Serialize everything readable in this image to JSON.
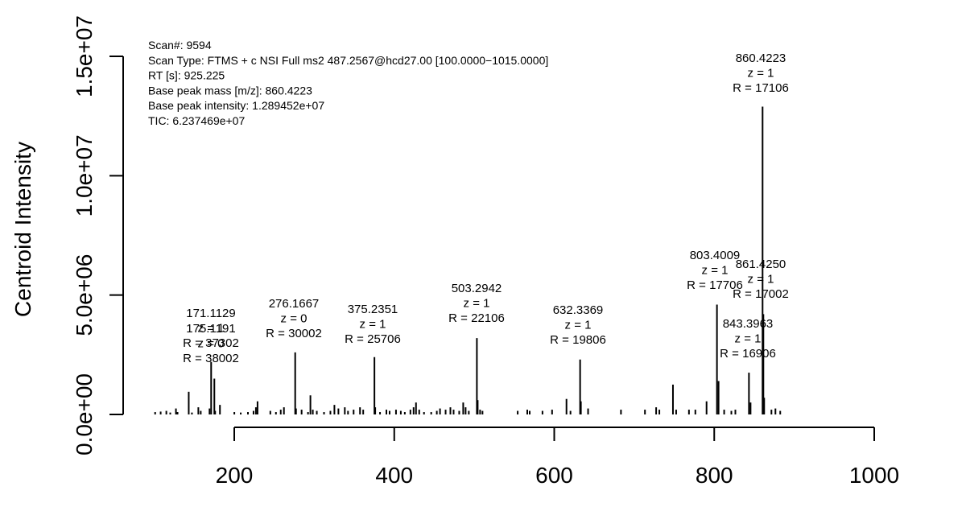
{
  "chart_data": {
    "type": "bar",
    "ylabel": "Centroid Intensity",
    "xlabel": "",
    "xlim": [
      100,
      1000
    ],
    "ylim": [
      0,
      15000000
    ],
    "x_ticks": [
      "200",
      "400",
      "600",
      "800",
      "1000"
    ],
    "y_ticks": [
      "0.0e+00",
      "5.0e+06",
      "1.0e+07",
      "1.5e+07"
    ],
    "info": [
      "Scan#:  9594",
      "Scan Type:  FTMS + c NSI Full ms2 487.2567@hcd27.00 [100.0000−1015.0000]",
      "RT [s]:  925.225",
      "Base peak mass [m/z]:  860.4223",
      "Base peak intensity:  1.289452e+07",
      "TIC:  6.237469e+07"
    ],
    "annotations": [
      {
        "mz": "171.1129",
        "z": "z =  1",
        "r": "R =  37302"
      },
      {
        "mz": "175.1191",
        "z": "z =  0",
        "r": "R =  38002"
      },
      {
        "mz": "276.1667",
        "z": "z =  0",
        "r": "R =  30002"
      },
      {
        "mz": "375.2351",
        "z": "z =  1",
        "r": "R =  25706"
      },
      {
        "mz": "503.2942",
        "z": "z =  1",
        "r": "R =  22106"
      },
      {
        "mz": "632.3369",
        "z": "z =  1",
        "r": "R =  19806"
      },
      {
        "mz": "803.4009",
        "z": "z =  1",
        "r": "R =  17706"
      },
      {
        "mz": "843.3963",
        "z": "z =  1",
        "r": "R =  16906"
      },
      {
        "mz": "860.4223",
        "z": "z =  1",
        "r": "R =  17106"
      },
      {
        "mz": "861.4250",
        "z": "z =  1",
        "r": "R =  17002"
      }
    ],
    "peaks": [
      [
        101.1,
        100000
      ],
      [
        108.0,
        120000
      ],
      [
        115.1,
        150000
      ],
      [
        120.0,
        80000
      ],
      [
        127.1,
        250000
      ],
      [
        129.1,
        100000
      ],
      [
        143.1,
        950000
      ],
      [
        147.1,
        80000
      ],
      [
        155.1,
        300000
      ],
      [
        158.1,
        150000
      ],
      [
        169.1,
        250000
      ],
      [
        171.1129,
        2200000
      ],
      [
        175.1191,
        1500000
      ],
      [
        176.1,
        150000
      ],
      [
        182.1,
        400000
      ],
      [
        200.1,
        100000
      ],
      [
        208.1,
        80000
      ],
      [
        217.1,
        100000
      ],
      [
        224.1,
        150000
      ],
      [
        227.1,
        300000
      ],
      [
        229.1,
        550000
      ],
      [
        245.1,
        150000
      ],
      [
        252.1,
        100000
      ],
      [
        258.1,
        200000
      ],
      [
        262.1,
        300000
      ],
      [
        276.1667,
        2600000
      ],
      [
        277.2,
        250000
      ],
      [
        284.2,
        200000
      ],
      [
        292.2,
        100000
      ],
      [
        295.2,
        800000
      ],
      [
        298.2,
        200000
      ],
      [
        303.2,
        150000
      ],
      [
        312.2,
        100000
      ],
      [
        320.2,
        150000
      ],
      [
        325.2,
        400000
      ],
      [
        330.2,
        250000
      ],
      [
        338.2,
        300000
      ],
      [
        342.2,
        150000
      ],
      [
        349.2,
        200000
      ],
      [
        357.2,
        300000
      ],
      [
        361.2,
        200000
      ],
      [
        375.2351,
        2400000
      ],
      [
        376.2,
        300000
      ],
      [
        382.2,
        100000
      ],
      [
        390.2,
        200000
      ],
      [
        394.2,
        150000
      ],
      [
        402.2,
        200000
      ],
      [
        408.2,
        150000
      ],
      [
        413.2,
        100000
      ],
      [
        420.2,
        200000
      ],
      [
        424.2,
        300000
      ],
      [
        427.2,
        500000
      ],
      [
        431.2,
        200000
      ],
      [
        437.2,
        100000
      ],
      [
        446.2,
        100000
      ],
      [
        453.2,
        150000
      ],
      [
        457.2,
        250000
      ],
      [
        464.2,
        200000
      ],
      [
        470.2,
        300000
      ],
      [
        474.2,
        200000
      ],
      [
        481.2,
        150000
      ],
      [
        486.2,
        500000
      ],
      [
        489.2,
        300000
      ],
      [
        493.2,
        150000
      ],
      [
        503.2942,
        3200000
      ],
      [
        504.3,
        600000
      ],
      [
        507.3,
        200000
      ],
      [
        510.3,
        150000
      ],
      [
        554.3,
        150000
      ],
      [
        566.3,
        200000
      ],
      [
        569.3,
        150000
      ],
      [
        585.3,
        150000
      ],
      [
        597.3,
        200000
      ],
      [
        615.3,
        650000
      ],
      [
        620.3,
        150000
      ],
      [
        632.3369,
        2300000
      ],
      [
        633.3,
        550000
      ],
      [
        642.3,
        250000
      ],
      [
        683.4,
        200000
      ],
      [
        713.4,
        200000
      ],
      [
        727.4,
        300000
      ],
      [
        731.4,
        200000
      ],
      [
        748.4,
        1250000
      ],
      [
        752.4,
        200000
      ],
      [
        768.4,
        200000
      ],
      [
        776.4,
        200000
      ],
      [
        790.4,
        550000
      ],
      [
        803.4009,
        4600000
      ],
      [
        805.4,
        1400000
      ],
      [
        812.4,
        200000
      ],
      [
        821.4,
        150000
      ],
      [
        826.4,
        200000
      ],
      [
        843.3963,
        1750000
      ],
      [
        845.4,
        500000
      ],
      [
        860.4223,
        12894520
      ],
      [
        861.425,
        4200000
      ],
      [
        862.4,
        700000
      ],
      [
        871.5,
        200000
      ],
      [
        876.5,
        250000
      ],
      [
        882.5,
        150000
      ]
    ]
  }
}
